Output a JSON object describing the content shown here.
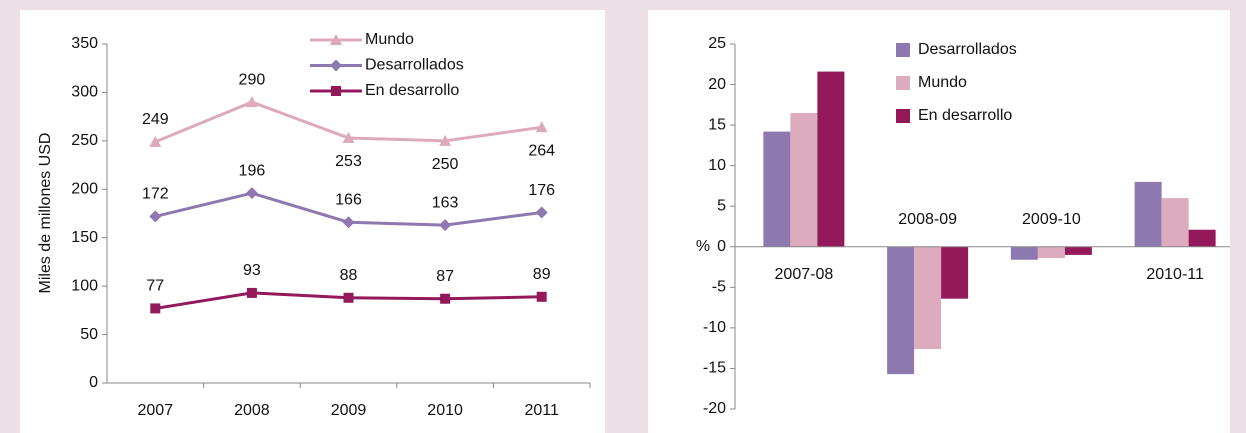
{
  "chart_data": [
    {
      "type": "line",
      "ylabel": "Miles de millones USD",
      "categories": [
        "2007",
        "2008",
        "2009",
        "2010",
        "2011"
      ],
      "series": [
        {
          "name": "Mundo",
          "color": "#ddaabb",
          "marker": "triangle",
          "values": [
            249,
            290,
            253,
            250,
            264
          ]
        },
        {
          "name": "Desarrollados",
          "color": "#8e78b0",
          "marker": "diamond",
          "values": [
            172,
            196,
            166,
            163,
            176
          ]
        },
        {
          "name": "En desarrollo",
          "color": "#93195a",
          "marker": "square",
          "values": [
            77,
            93,
            88,
            87,
            89
          ]
        }
      ],
      "ylim": [
        0,
        350
      ],
      "yticks": [
        0,
        50,
        100,
        150,
        200,
        250,
        300,
        350
      ]
    },
    {
      "type": "bar",
      "ylabel": "%",
      "categories": [
        "2007-08",
        "2008-09",
        "2009-10",
        "2010-11"
      ],
      "series": [
        {
          "name": "Desarrollados",
          "color": "#8e78b0",
          "values": [
            14.2,
            -15.7,
            -1.6,
            8.0
          ]
        },
        {
          "name": "Mundo",
          "color": "#ddabbe",
          "values": [
            16.5,
            -12.6,
            -1.4,
            6.0
          ]
        },
        {
          "name": "En desarrollo",
          "color": "#93195a",
          "values": [
            21.6,
            -6.4,
            -1.0,
            2.1
          ]
        }
      ],
      "ylim": [
        -20,
        25
      ],
      "yticks": [
        -20,
        -15,
        -10,
        -5,
        0,
        5,
        10,
        15,
        20,
        25
      ]
    }
  ]
}
